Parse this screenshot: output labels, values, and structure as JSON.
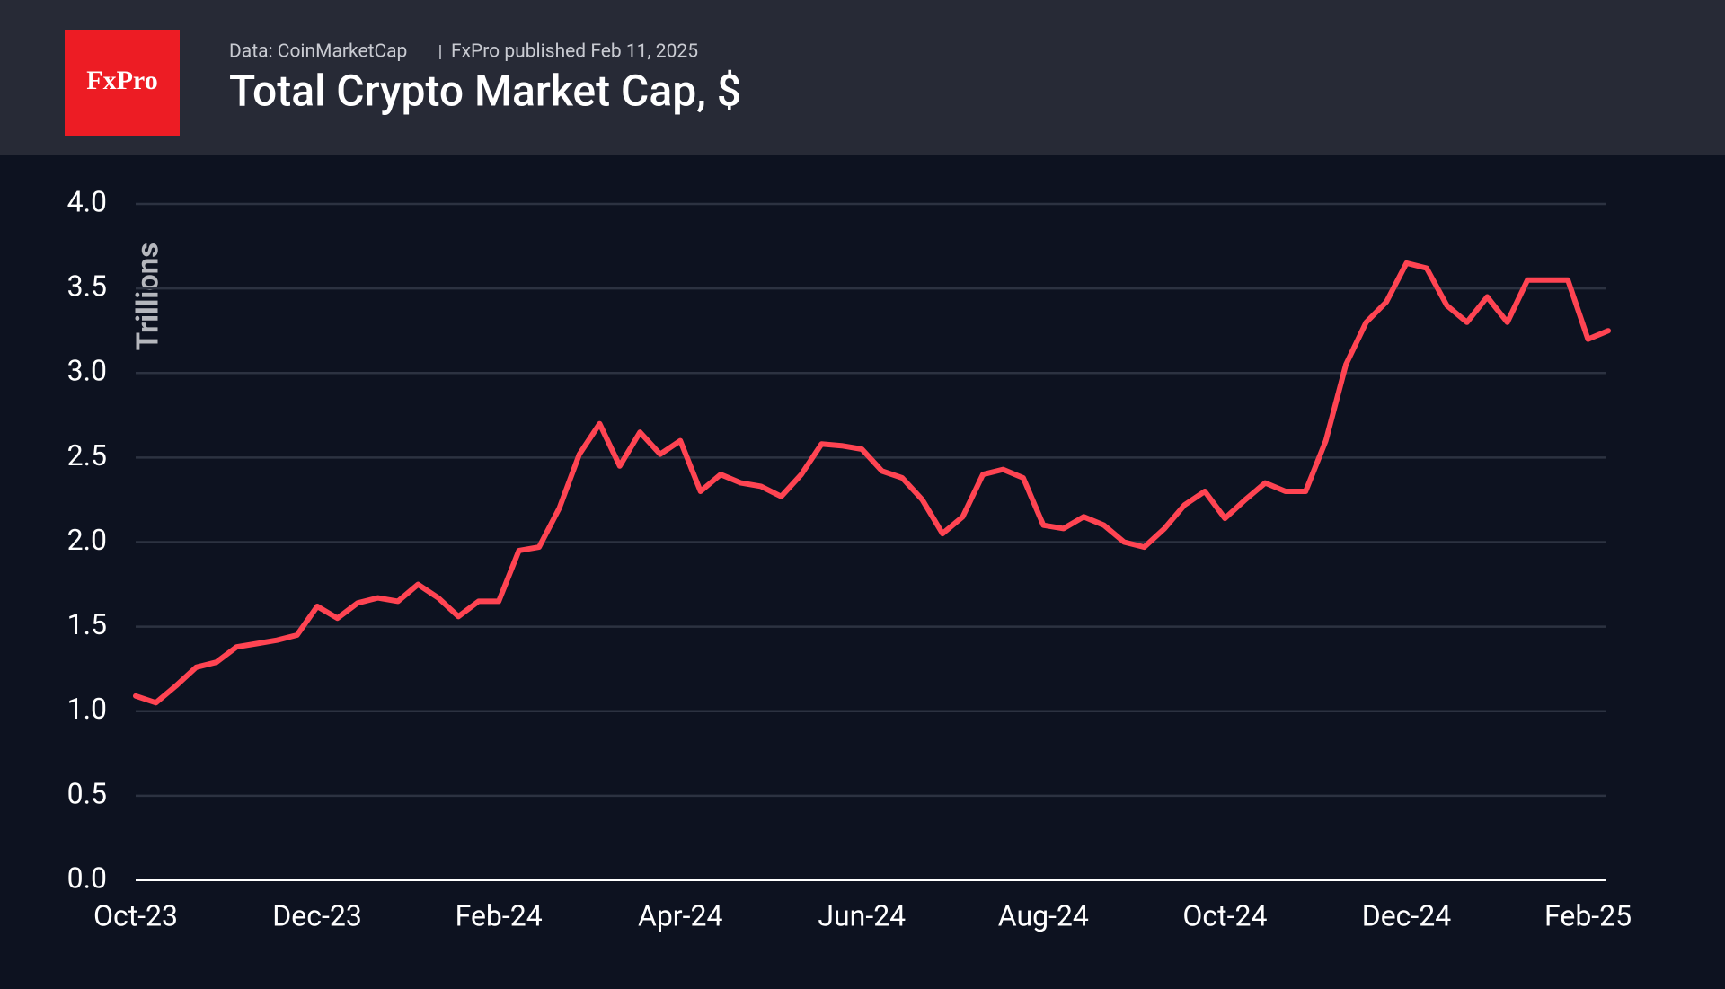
{
  "chart_data": {
    "type": "line",
    "logo": "FxPro",
    "source": "Data: CoinMarketCap",
    "published": "FxPro published Feb 11, 2025",
    "title": "Total Crypto Market Cap, $",
    "y_label": "Trillions",
    "color": "#ff4452",
    "grid": true,
    "ylim": [
      0,
      4
    ],
    "yticks": [
      {
        "value": 0,
        "label": "0.0"
      },
      0.5,
      {
        "value": 1,
        "label": "1.0"
      },
      1.5,
      {
        "value": 2,
        "label": "2.0"
      },
      2.5,
      {
        "value": 3,
        "label": "3.0"
      },
      3.5,
      {
        "value": 4,
        "label": "4.0"
      }
    ],
    "categories": [
      "Oct-23",
      null,
      null,
      null,
      null,
      null,
      null,
      null,
      null,
      "Dec-23",
      null,
      null,
      null,
      null,
      null,
      null,
      null,
      null,
      "Feb-24",
      null,
      null,
      null,
      null,
      null,
      null,
      null,
      null,
      "Apr-24",
      null,
      null,
      null,
      null,
      null,
      null,
      null,
      null,
      "Jun-24",
      null,
      null,
      null,
      null,
      null,
      null,
      null,
      null,
      "Aug-24",
      null,
      null,
      null,
      null,
      null,
      null,
      null,
      null,
      "Oct-24",
      null,
      null,
      null,
      null,
      null,
      null,
      null,
      null,
      "Dec-24",
      null,
      null,
      null,
      null,
      null,
      null,
      null,
      null,
      "Feb-25",
      null
    ],
    "values": [
      1.09,
      1.05,
      1.15,
      1.26,
      1.29,
      1.38,
      1.4,
      1.42,
      1.45,
      1.62,
      1.55,
      1.64,
      1.67,
      1.65,
      1.75,
      1.67,
      1.56,
      1.65,
      1.65,
      1.95,
      1.97,
      2.2,
      2.52,
      2.7,
      2.45,
      2.65,
      2.52,
      2.6,
      2.3,
      2.4,
      2.35,
      2.33,
      2.27,
      2.4,
      2.58,
      2.57,
      2.55,
      2.42,
      2.38,
      2.25,
      2.05,
      2.15,
      2.4,
      2.43,
      2.38,
      2.1,
      2.08,
      2.15,
      2.1,
      2.0,
      1.97,
      2.08,
      2.22,
      2.3,
      2.14,
      2.25,
      2.35,
      2.3,
      2.3,
      2.6,
      3.05,
      3.3,
      3.42,
      3.65,
      3.62,
      3.4,
      3.3,
      3.45,
      3.3,
      3.55,
      3.55,
      3.55,
      3.2,
      3.25
    ]
  }
}
